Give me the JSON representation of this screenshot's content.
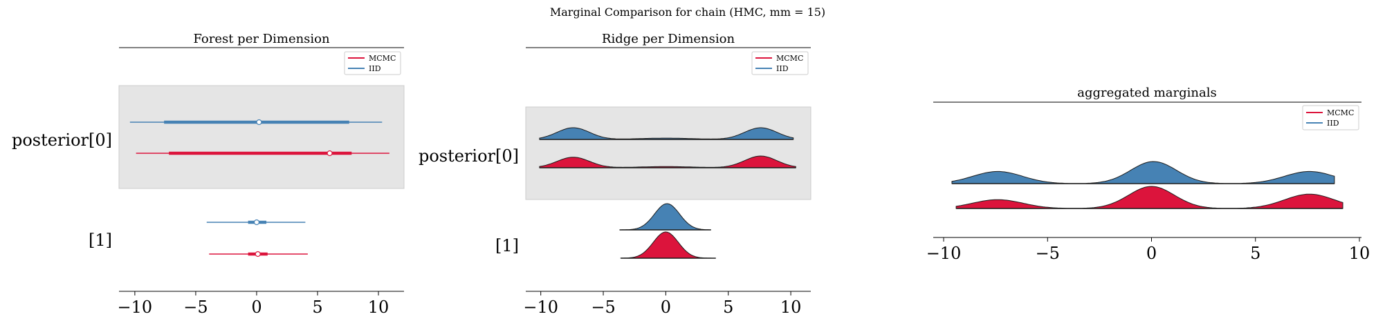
{
  "suptitle": "Marginal Comparison for chain (HMC, mm = 15)",
  "colors": {
    "mcmc": "#dc143c",
    "iid": "#4682b4",
    "band": "#e5e5e5"
  },
  "chart_data": [
    {
      "type": "forest",
      "title": "Forest per Dimension",
      "xlim": [
        -11.3,
        12.1
      ],
      "xticks": [
        -10,
        -5,
        0,
        5,
        10
      ],
      "xtick_labels": [
        "−10",
        "−5",
        "0",
        "5",
        "10"
      ],
      "legend": {
        "placement": "top-right",
        "entries": [
          {
            "label": "MCMC",
            "series": "mcmc"
          },
          {
            "label": "IID",
            "series": "iid"
          }
        ]
      },
      "rows": [
        {
          "label": "posterior[0]",
          "shaded": true,
          "iid": {
            "hdi94": [
              -10.4,
              10.3
            ],
            "hdi50": [
              -7.6,
              7.6
            ],
            "point": 0.2
          },
          "mcmc": {
            "hdi94": [
              -9.9,
              10.9
            ],
            "hdi50": [
              -7.2,
              7.8
            ],
            "point": 6.0
          }
        },
        {
          "label": "[1]",
          "shaded": false,
          "iid": {
            "hdi94": [
              -4.1,
              4.0
            ],
            "hdi50": [
              -0.7,
              0.8
            ],
            "point": 0.0
          },
          "mcmc": {
            "hdi94": [
              -3.9,
              4.2
            ],
            "hdi50": [
              -0.7,
              0.9
            ],
            "point": 0.1
          }
        }
      ]
    },
    {
      "type": "ridge",
      "title": "Ridge per Dimension",
      "xlim": [
        -11.2,
        11.6
      ],
      "xticks": [
        -10,
        -5,
        0,
        5,
        10
      ],
      "xtick_labels": [
        "−10",
        "−5",
        "0",
        "5",
        "10"
      ],
      "legend": {
        "placement": "top-right",
        "entries": [
          {
            "label": "MCMC",
            "series": "mcmc"
          },
          {
            "label": "IID",
            "series": "iid"
          }
        ]
      },
      "rows": [
        {
          "label": "posterior[0]",
          "shaded": true,
          "iid": {
            "range": [
              -10.1,
              10.2
            ],
            "peaks": [
              [
                -7.4,
                1.3,
                0.9
              ],
              [
                0.0,
                2.2,
                0.1
              ],
              [
                7.6,
                1.3,
                0.9
              ]
            ]
          },
          "mcmc": {
            "range": [
              -10.1,
              10.4
            ],
            "peaks": [
              [
                -7.4,
                1.3,
                0.9
              ],
              [
                0.0,
                2.2,
                0.1
              ],
              [
                7.6,
                1.3,
                1.0
              ]
            ]
          }
        },
        {
          "label": "[1]",
          "shaded": false,
          "iid": {
            "range": [
              -3.7,
              3.6
            ],
            "peaks": [
              [
                0.1,
                1.0,
                1.0
              ]
            ]
          },
          "mcmc": {
            "range": [
              -3.6,
              4.0
            ],
            "peaks": [
              [
                0.0,
                1.0,
                1.0
              ]
            ]
          }
        }
      ]
    },
    {
      "type": "ridge",
      "title": "aggregated marginals",
      "xlim": [
        -10.5,
        10.1
      ],
      "xticks": [
        -10,
        -5,
        0,
        5,
        10
      ],
      "xtick_labels": [
        "−10",
        "−5",
        "0",
        "5",
        "10"
      ],
      "legend": {
        "placement": "top-right",
        "entries": [
          {
            "label": "MCMC",
            "series": "mcmc"
          },
          {
            "label": "IID",
            "series": "iid"
          }
        ]
      },
      "rows": [
        {
          "label": "",
          "shaded": false,
          "iid": {
            "range": [
              -9.6,
              8.8
            ],
            "peaks": [
              [
                -7.4,
                1.2,
                0.55
              ],
              [
                0.1,
                1.1,
                1.0
              ],
              [
                7.6,
                1.2,
                0.55
              ]
            ]
          },
          "mcmc": {
            "range": [
              -9.4,
              9.2
            ],
            "peaks": [
              [
                -7.4,
                1.2,
                0.4
              ],
              [
                0.0,
                1.1,
                1.0
              ],
              [
                7.6,
                1.2,
                0.65
              ]
            ]
          }
        }
      ]
    }
  ]
}
